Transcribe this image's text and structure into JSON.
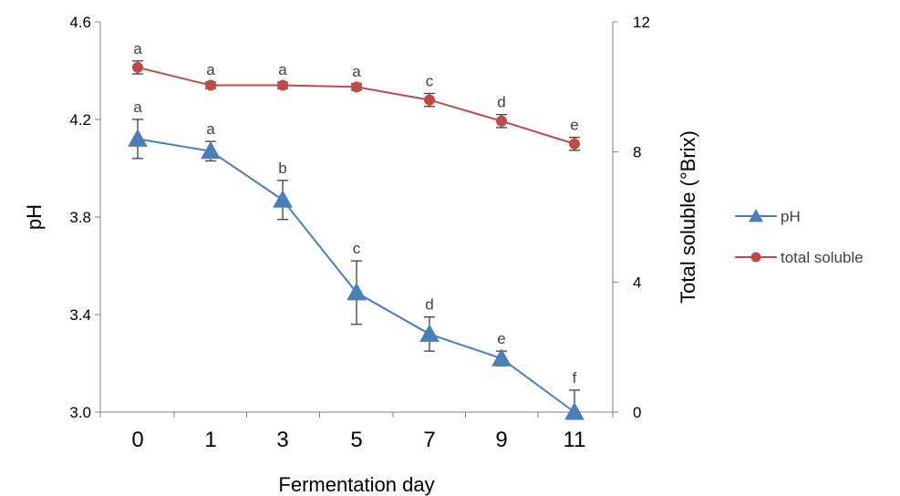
{
  "chart_data": {
    "type": "line",
    "categories": [
      "0",
      "1",
      "3",
      "5",
      "7",
      "9",
      "11"
    ],
    "xlabel": "Fermentation day",
    "y_left": {
      "label": "pH",
      "ylim": [
        3.0,
        4.6
      ],
      "ticks": [
        "3.0",
        "3.4",
        "3.8",
        "4.2",
        "4.6"
      ]
    },
    "y_right": {
      "label": "Total soluble (°Brix)",
      "ylim": [
        0,
        12
      ],
      "ticks": [
        "0",
        "4",
        "8",
        "12"
      ]
    },
    "grid": false,
    "legend_position": "right",
    "series": [
      {
        "name": "pH",
        "axis": "left",
        "color": "#4a7ebb",
        "marker": "triangle",
        "values": [
          4.12,
          4.07,
          3.87,
          3.49,
          3.32,
          3.22,
          3.0
        ],
        "errors": [
          0.08,
          0.04,
          0.08,
          0.13,
          0.07,
          0.03,
          0.09
        ],
        "significance": [
          "a",
          "a",
          "b",
          "c",
          "d",
          "e",
          "f"
        ]
      },
      {
        "name": "total soluble",
        "axis": "right",
        "color": "#be4b48",
        "marker": "circle",
        "values": [
          10.6,
          10.05,
          10.05,
          10.0,
          9.6,
          8.95,
          8.25
        ],
        "errors": [
          0.2,
          0.1,
          0.1,
          0.1,
          0.2,
          0.2,
          0.2
        ],
        "significance": [
          "a",
          "a",
          "a",
          "a",
          "c",
          "d",
          "e"
        ]
      }
    ]
  }
}
